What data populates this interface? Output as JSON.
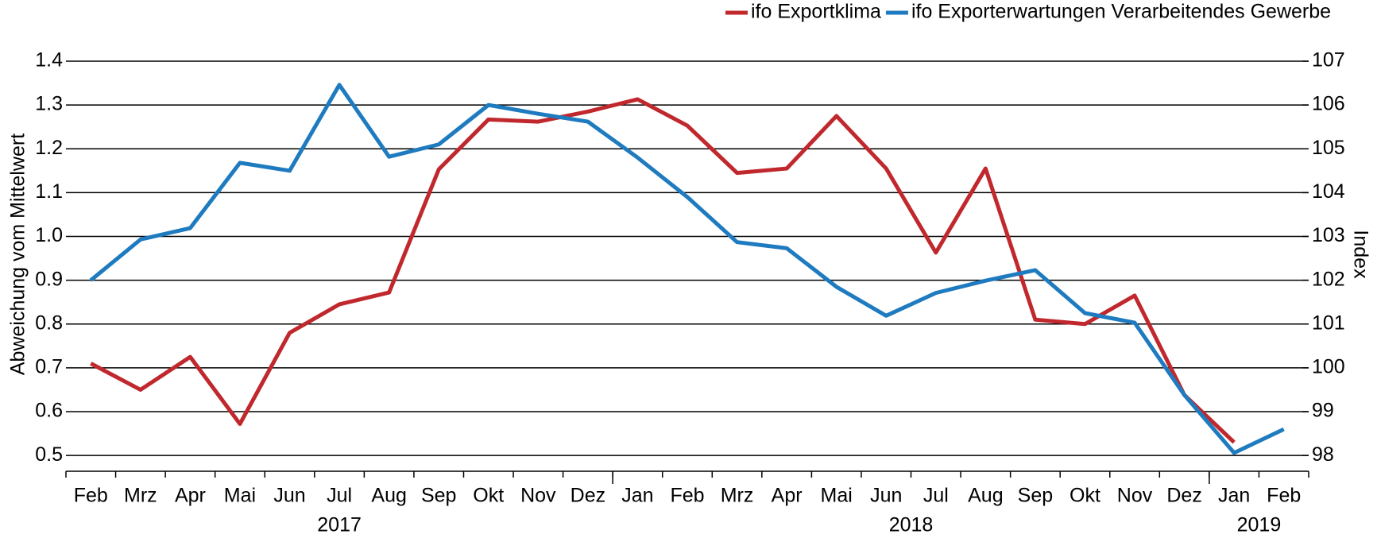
{
  "chart_data": {
    "type": "line",
    "categories": [
      "Feb",
      "Mrz",
      "Apr",
      "Mai",
      "Jun",
      "Jul",
      "Aug",
      "Sep",
      "Okt",
      "Nov",
      "Dez",
      "Jan",
      "Feb",
      "Mrz",
      "Apr",
      "Mai",
      "Jun",
      "Jul",
      "Aug",
      "Sep",
      "Okt",
      "Nov",
      "Dez",
      "Jan",
      "Feb"
    ],
    "category_groups": [
      {
        "label": "2017",
        "size": 11
      },
      {
        "label": "2018",
        "size": 12
      },
      {
        "label": "2019",
        "size": 2
      }
    ],
    "y_label": "Abweichung vom Mittelwert",
    "y2_label": "Index",
    "ylim": [
      0.464,
      1.4
    ],
    "yticks": [
      0.5,
      0.6,
      0.7,
      0.8,
      0.9,
      {
        "value": 1,
        "label": "1.0"
      },
      1.1,
      1.2,
      1.3,
      1.4
    ],
    "y2lim": [
      97.64,
      107
    ],
    "y2ticks": [
      98,
      99,
      100,
      101,
      102,
      103,
      104,
      105,
      106,
      107
    ],
    "grid": true,
    "legend": "top-right",
    "series": [
      {
        "name": "ifo Exportklima",
        "color": "#c0282d",
        "values": [
          0.71,
          0.65,
          0.725,
          0.572,
          0.78,
          0.845,
          0.872,
          1.153,
          1.267,
          1.262,
          1.285,
          1.313,
          1.253,
          1.145,
          1.155,
          1.275,
          1.155,
          0.963,
          1.155,
          0.81,
          0.8,
          0.865,
          0.638,
          0.53,
          null
        ]
      },
      {
        "name": "ifo Exporterwartungen Verarbeitendes Gewerbe",
        "color": "#1f7bbf",
        "axis": "y2",
        "values": [
          102.0,
          102.93,
          103.19,
          104.68,
          104.5,
          106.46,
          104.82,
          105.1,
          106.0,
          105.8,
          105.62,
          104.8,
          103.9,
          102.87,
          102.73,
          101.85,
          101.19,
          101.71,
          101.99,
          102.23,
          101.25,
          101.03,
          99.38,
          98.06,
          98.6
        ]
      }
    ]
  }
}
